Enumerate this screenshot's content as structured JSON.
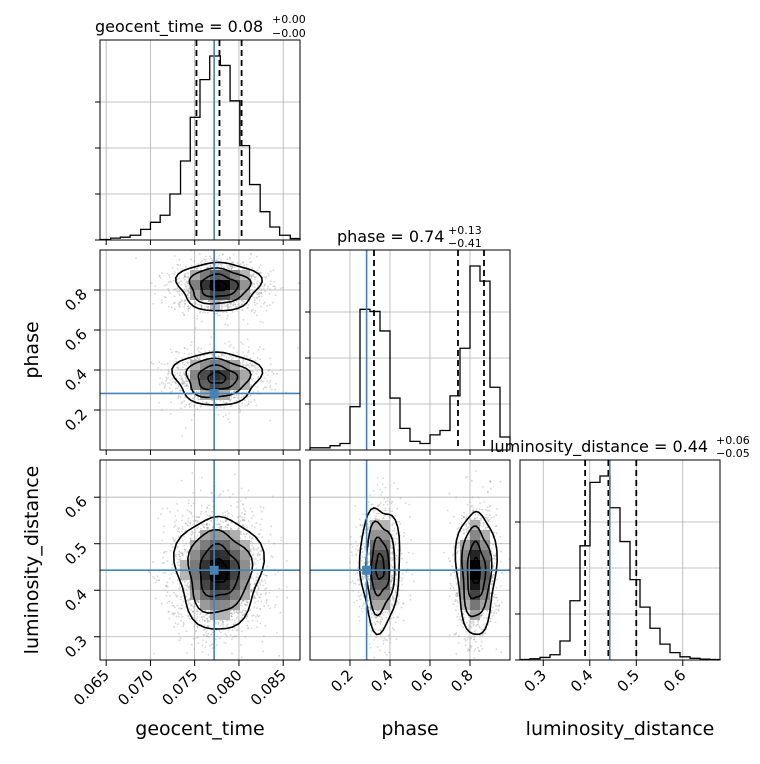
{
  "chart_data": {
    "type": "corner",
    "parameters": [
      "geocent_time",
      "phase",
      "luminosity_distance"
    ],
    "truths": {
      "geocent_time": 0.0772,
      "phase": 0.283,
      "luminosity_distance": 0.443
    },
    "quantile_lines": {
      "geocent_time": [
        0.0752,
        0.0778,
        0.0803
      ],
      "phase": [
        0.32,
        0.74,
        0.87
      ],
      "luminosity_distance": [
        0.39,
        0.44,
        0.5
      ]
    },
    "ranges": {
      "geocent_time": [
        0.0643,
        0.0869
      ],
      "phase": [
        0.0,
        1.0
      ],
      "luminosity_distance": [
        0.25,
        0.68
      ]
    },
    "titles": [
      {
        "param": "geocent_time",
        "base": "geocent_time = 0.08",
        "sup": "+0.00",
        "sub": "−0.00"
      },
      {
        "param": "phase",
        "base": "phase = 0.74",
        "sup": "+0.13",
        "sub": "−0.41"
      },
      {
        "param": "luminosity_distance",
        "base": "luminosity_distance = 0.44",
        "sup": "+0.06",
        "sub": "−0.05"
      }
    ],
    "axis_labels": {
      "x": [
        "geocent_time",
        "phase",
        "luminosity_distance"
      ],
      "y": [
        "phase",
        "luminosity_distance"
      ]
    },
    "ticks": {
      "geocent_time": [
        "0.065",
        "0.070",
        "0.075",
        "0.080",
        "0.085"
      ],
      "geocent_time_values": [
        0.065,
        0.07,
        0.075,
        0.08,
        0.085
      ],
      "phase": [
        "0.2",
        "0.4",
        "0.6",
        "0.8"
      ],
      "phase_values": [
        0.2,
        0.4,
        0.6,
        0.8
      ],
      "luminosity_distance_x": [
        "0.3",
        "0.4",
        "0.5",
        "0.6"
      ],
      "luminosity_distance_x_values": [
        0.3,
        0.4,
        0.5,
        0.6
      ],
      "luminosity_distance_y": [
        "0.3",
        "0.4",
        "0.5",
        "0.6"
      ],
      "luminosity_distance_y_values": [
        0.3,
        0.4,
        0.5,
        0.6
      ]
    },
    "histograms": {
      "geocent_time": {
        "edges": [
          0.0643,
          0.0655,
          0.0666,
          0.0677,
          0.0689,
          0.07,
          0.0711,
          0.0722,
          0.0734,
          0.0745,
          0.0756,
          0.0767,
          0.0779,
          0.079,
          0.0801,
          0.0812,
          0.0824,
          0.0835,
          0.0846,
          0.0858,
          0.0869
        ],
        "counts": [
          0.2,
          0.8,
          1.2,
          2.0,
          4.5,
          7.5,
          10.5,
          19.5,
          33.5,
          52.0,
          68.0,
          78.0,
          74.0,
          59.0,
          40.0,
          23.5,
          12.0,
          5.5,
          2.0,
          0.6
        ]
      },
      "phase": {
        "edges": [
          0.0,
          0.05,
          0.1,
          0.15,
          0.2,
          0.25,
          0.3,
          0.35,
          0.4,
          0.45,
          0.5,
          0.55,
          0.6,
          0.65,
          0.7,
          0.75,
          0.8,
          0.85,
          0.9,
          0.95,
          1.0
        ],
        "counts": [
          1.0,
          1.0,
          2.0,
          3.0,
          20.0,
          65.0,
          64.0,
          55.0,
          24.0,
          10.0,
          4.0,
          3.0,
          7.0,
          9.0,
          25.0,
          47.0,
          85.0,
          78.0,
          29.0,
          6.0
        ]
      },
      "luminosity_distance": {
        "edges": [
          0.25,
          0.2715,
          0.293,
          0.3145,
          0.336,
          0.3575,
          0.379,
          0.4005,
          0.422,
          0.4435,
          0.465,
          0.4865,
          0.508,
          0.5295,
          0.551,
          0.5725,
          0.594,
          0.6155,
          0.637,
          0.6585,
          0.68
        ],
        "counts": [
          0.2,
          0.6,
          1.2,
          2.5,
          9.0,
          28.0,
          54.0,
          84.0,
          87.0,
          72.0,
          56.0,
          38.0,
          25.0,
          15.0,
          7.5,
          3.5,
          1.5,
          0.8,
          0.4,
          0.2
        ]
      }
    },
    "scatter_density": {
      "phase_vs_geocent_time": {
        "modes": [
          {
            "x": 0.0777,
            "y": 0.82,
            "sx": 0.0021,
            "sy": 0.055,
            "weight": 0.55
          },
          {
            "x": 0.0775,
            "y": 0.36,
            "sx": 0.0022,
            "sy": 0.06,
            "weight": 0.45
          }
        ]
      },
      "luminosity_distance_vs_geocent_time": {
        "modes": [
          {
            "x": 0.0777,
            "y": 0.44,
            "sx": 0.0022,
            "sy": 0.055,
            "weight": 1.0
          }
        ]
      },
      "luminosity_distance_vs_phase": {
        "modes": [
          {
            "x": 0.35,
            "y": 0.45,
            "sx": 0.045,
            "sy": 0.06,
            "weight": 0.45
          },
          {
            "x": 0.83,
            "y": 0.44,
            "sx": 0.045,
            "sy": 0.06,
            "weight": 0.55
          }
        ]
      }
    }
  }
}
